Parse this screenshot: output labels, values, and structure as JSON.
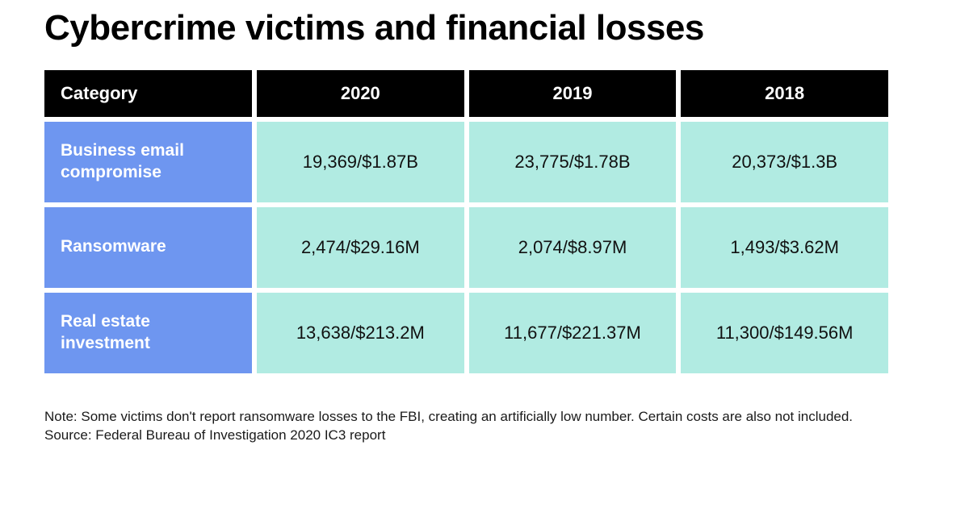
{
  "title": "Cybercrime victims and financial losses",
  "chart_data": {
    "type": "table",
    "title": "Cybercrime victims and financial losses",
    "columns": [
      "Category",
      "2020",
      "2019",
      "2018"
    ],
    "cell_format": "victims count / financial losses",
    "rows": [
      {
        "category": "Business email compromise",
        "values": [
          "19,369/$1.87B",
          "23,775/$1.78B",
          "20,373/$1.3B"
        ]
      },
      {
        "category": "Ransomware",
        "values": [
          "2,474/$29.16M",
          "2,074/$8.97M",
          "1,493/$3.62M"
        ]
      },
      {
        "category": "Real estate investment",
        "values": [
          "13,638/$213.2M",
          "11,677/$221.37M",
          "11,300/$149.56M"
        ]
      }
    ],
    "parsed": [
      {
        "category": "Business email compromise",
        "victims": {
          "2020": 19369,
          "2019": 23775,
          "2018": 20373
        },
        "losses": {
          "2020": "$1.87B",
          "2019": "$1.78B",
          "2018": "$1.3B"
        }
      },
      {
        "category": "Ransomware",
        "victims": {
          "2020": 2474,
          "2019": 2074,
          "2018": 1493
        },
        "losses": {
          "2020": "$29.16M",
          "2019": "$8.97M",
          "2018": "$3.62M"
        }
      },
      {
        "category": "Real estate investment",
        "victims": {
          "2020": 13638,
          "2019": 11677,
          "2018": 11300
        },
        "losses": {
          "2020": "$213.2M",
          "2019": "$221.37M",
          "2018": "$149.56M"
        }
      }
    ]
  },
  "note": "Note: Some victims don't report ransomware losses to the FBI, creating an artificially low number. Certain costs are also not included.",
  "source": "Source: Federal Bureau of Investigation 2020 IC3 report",
  "colors": {
    "header_bg": "#000000",
    "header_text": "#ffffff",
    "category_bg": "#6e96f0",
    "category_text": "#ffffff",
    "value_bg": "#b1ebe2",
    "value_text": "#111111",
    "background": "#ffffff"
  }
}
